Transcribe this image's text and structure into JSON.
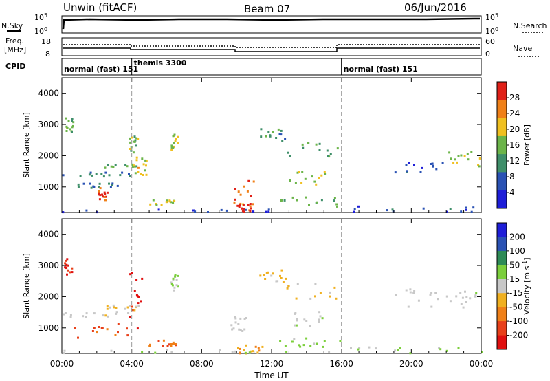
{
  "header": {
    "site": "Unwin (fitACF)",
    "beam": "Beam 07",
    "date": "06/Jun/2016"
  },
  "nsky_panel": {
    "left_label": "N.Sky",
    "right_label": "N.Search",
    "left_ticks": [
      "10^5",
      "10^0"
    ],
    "right_ticks": [
      "10^5",
      "10^0"
    ]
  },
  "freq_panel": {
    "left_label_line1": "Freq.",
    "left_label_line2": "[MHz]",
    "right_label": "Nave",
    "left_ticks": [
      "18",
      "8"
    ],
    "right_ticks": [
      "60",
      "0"
    ]
  },
  "cpid": {
    "label": "CPID",
    "segments": [
      {
        "start": 0,
        "end": 4,
        "text": "normal (fast) 151"
      },
      {
        "start": 4,
        "end": 16,
        "text": "themis 3300"
      },
      {
        "start": 16,
        "end": 24,
        "text": "normal (fast) 151"
      }
    ]
  },
  "chart_data": [
    {
      "type": "heatmap",
      "quantity": "Power",
      "ylabel": "Slant Range [km]",
      "colorbar_label": "Power [dB]",
      "colorbar_ticks": [
        "4",
        "8",
        "12",
        "16",
        "20",
        "24",
        "28"
      ],
      "colorbar_range": [
        0,
        30
      ],
      "colors": [
        "#1e1ed8",
        "#2a52b4",
        "#3f8f6a",
        "#6cb54a",
        "#f0c020",
        "#f08018",
        "#e02018"
      ],
      "xlim": [
        0,
        24
      ],
      "ylim": [
        180,
        4500
      ],
      "y_ticks": [
        "1000",
        "2000",
        "3000",
        "4000"
      ],
      "x_ticks": [
        "00:00",
        "04:00",
        "08:00",
        "12:00",
        "16:00",
        "20:00",
        "00:00"
      ],
      "regions": [
        {
          "t0": 0.1,
          "t1": 0.6,
          "r0": 2700,
          "r1": 3300,
          "value": 14
        },
        {
          "t0": 0.0,
          "t1": 4.0,
          "r0": 1350,
          "r1": 1550,
          "value": 10
        },
        {
          "t0": 2.4,
          "t1": 4.4,
          "r0": 1600,
          "r1": 1750,
          "value": 14
        },
        {
          "t0": 0.5,
          "t1": 3.8,
          "r0": 1000,
          "r1": 1200,
          "value": 8
        },
        {
          "t0": 1.9,
          "t1": 2.6,
          "r0": 600,
          "r1": 1000,
          "value": 27
        },
        {
          "t0": 4.0,
          "t1": 4.8,
          "r0": 1400,
          "r1": 2000,
          "value": 18
        },
        {
          "t0": 3.8,
          "t1": 4.3,
          "r0": 2100,
          "r1": 2700,
          "value": 15
        },
        {
          "t0": 5.0,
          "t1": 6.4,
          "r0": 450,
          "r1": 650,
          "value": 17
        },
        {
          "t0": 6.2,
          "t1": 6.6,
          "r0": 2200,
          "r1": 2750,
          "value": 18
        },
        {
          "t0": 9.8,
          "t1": 11.0,
          "r0": 400,
          "r1": 1400,
          "value": 25
        },
        {
          "t0": 10.0,
          "t1": 10.8,
          "r0": 200,
          "r1": 500,
          "value": 29
        },
        {
          "t0": 11.3,
          "t1": 12.8,
          "r0": 2500,
          "r1": 2900,
          "value": 12
        },
        {
          "t0": 12.8,
          "t1": 15.8,
          "r0": 1950,
          "r1": 2500,
          "value": 12
        },
        {
          "t0": 13.0,
          "t1": 15.0,
          "r0": 1100,
          "r1": 1550,
          "value": 16
        },
        {
          "t0": 12.0,
          "t1": 16.0,
          "r0": 400,
          "r1": 700,
          "value": 13
        },
        {
          "t0": 16.0,
          "t1": 24.0,
          "r0": 220,
          "r1": 420,
          "value": 6
        },
        {
          "t0": 19.0,
          "t1": 22.0,
          "r0": 1500,
          "r1": 1850,
          "value": 5
        },
        {
          "t0": 22.0,
          "t1": 24.0,
          "r0": 1650,
          "r1": 2200,
          "value": 17
        },
        {
          "t0": 0.0,
          "t1": 16.0,
          "r0": 220,
          "r1": 320,
          "value": 5
        }
      ]
    },
    {
      "type": "heatmap",
      "quantity": "Velocity",
      "ylabel": "Slant Range [km]",
      "colorbar_label": "Velocity [m s^-1]",
      "colorbar_ticks": [
        "200",
        "100",
        "50",
        "15",
        "-15",
        "-50",
        "-100",
        "-200"
      ],
      "colorbar_range": [
        -250,
        250
      ],
      "colors": [
        "#1e1ed8",
        "#2a52b4",
        "#2e8b57",
        "#7ccf3c",
        "#c8c8c8",
        "#f0b020",
        "#f08018",
        "#e8401a",
        "#e01010"
      ],
      "xlim": [
        0,
        24
      ],
      "ylim": [
        180,
        4500
      ],
      "y_ticks": [
        "1000",
        "2000",
        "3000",
        "4000"
      ],
      "x_ticks": [
        "00:00",
        "04:00",
        "08:00",
        "12:00",
        "16:00",
        "20:00",
        "00:00"
      ],
      "xlabel": "Time UT",
      "regions": [
        {
          "t0": 0.1,
          "t1": 0.6,
          "r0": 2700,
          "r1": 3300,
          "value": -200
        },
        {
          "t0": 0.0,
          "t1": 4.0,
          "r0": 1350,
          "r1": 1550,
          "value": 0
        },
        {
          "t0": 2.4,
          "t1": 4.4,
          "r0": 1600,
          "r1": 1750,
          "value": -30
        },
        {
          "t0": 0.5,
          "t1": 3.8,
          "r0": 700,
          "r1": 1200,
          "value": -150
        },
        {
          "t0": 3.8,
          "t1": 4.6,
          "r0": 1000,
          "r1": 2900,
          "value": -210
        },
        {
          "t0": 4.8,
          "t1": 6.6,
          "r0": 400,
          "r1": 650,
          "value": -120
        },
        {
          "t0": 6.2,
          "t1": 6.6,
          "r0": 2200,
          "r1": 2750,
          "value": 40
        },
        {
          "t0": 9.6,
          "t1": 10.6,
          "r0": 700,
          "r1": 1400,
          "value": 0
        },
        {
          "t0": 10.0,
          "t1": 11.5,
          "r0": 200,
          "r1": 500,
          "value": -80
        },
        {
          "t0": 11.3,
          "t1": 12.8,
          "r0": 2500,
          "r1": 2900,
          "value": -40
        },
        {
          "t0": 12.8,
          "t1": 15.8,
          "r0": 1950,
          "r1": 2500,
          "value": -30
        },
        {
          "t0": 13.0,
          "t1": 15.0,
          "r0": 1100,
          "r1": 1550,
          "value": 5
        },
        {
          "t0": 12.0,
          "t1": 16.0,
          "r0": 400,
          "r1": 700,
          "value": 40
        },
        {
          "t0": 16.0,
          "t1": 24.0,
          "r0": 220,
          "r1": 420,
          "value": 30
        },
        {
          "t0": 19.0,
          "t1": 22.0,
          "r0": 1700,
          "r1": 2300,
          "value": 0
        },
        {
          "t0": 22.0,
          "t1": 24.0,
          "r0": 1650,
          "r1": 2200,
          "value": 0
        },
        {
          "t0": 0.0,
          "t1": 16.0,
          "r0": 220,
          "r1": 320,
          "value": 30
        }
      ]
    }
  ]
}
